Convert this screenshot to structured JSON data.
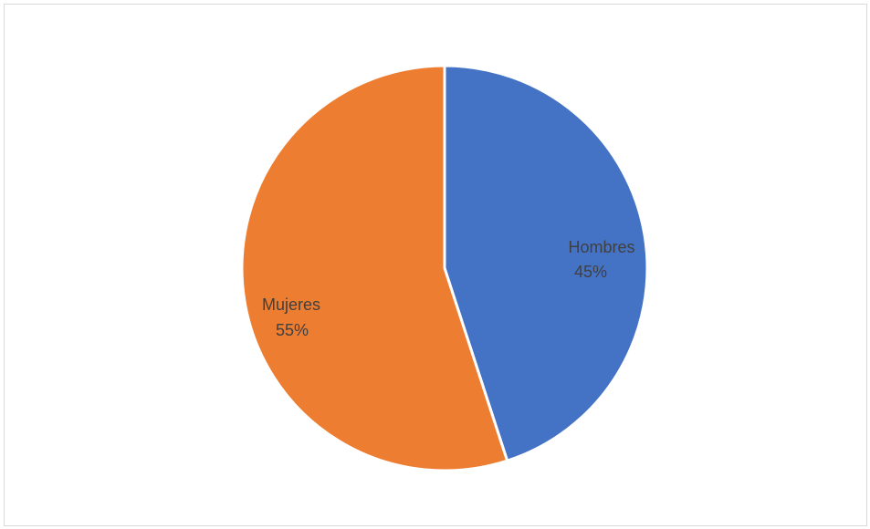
{
  "chart_data": {
    "type": "pie",
    "title": "",
    "slices": [
      {
        "name": "Hombres",
        "value": 45,
        "percent_label": "45%",
        "color": "#4472C4"
      },
      {
        "name": "Mujeres",
        "value": 55,
        "percent_label": "55%",
        "color": "#ED7D31"
      }
    ],
    "start_angle_deg": 0,
    "direction": "clockwise",
    "legend": "none",
    "data_labels": "category and percentage inside slices"
  }
}
